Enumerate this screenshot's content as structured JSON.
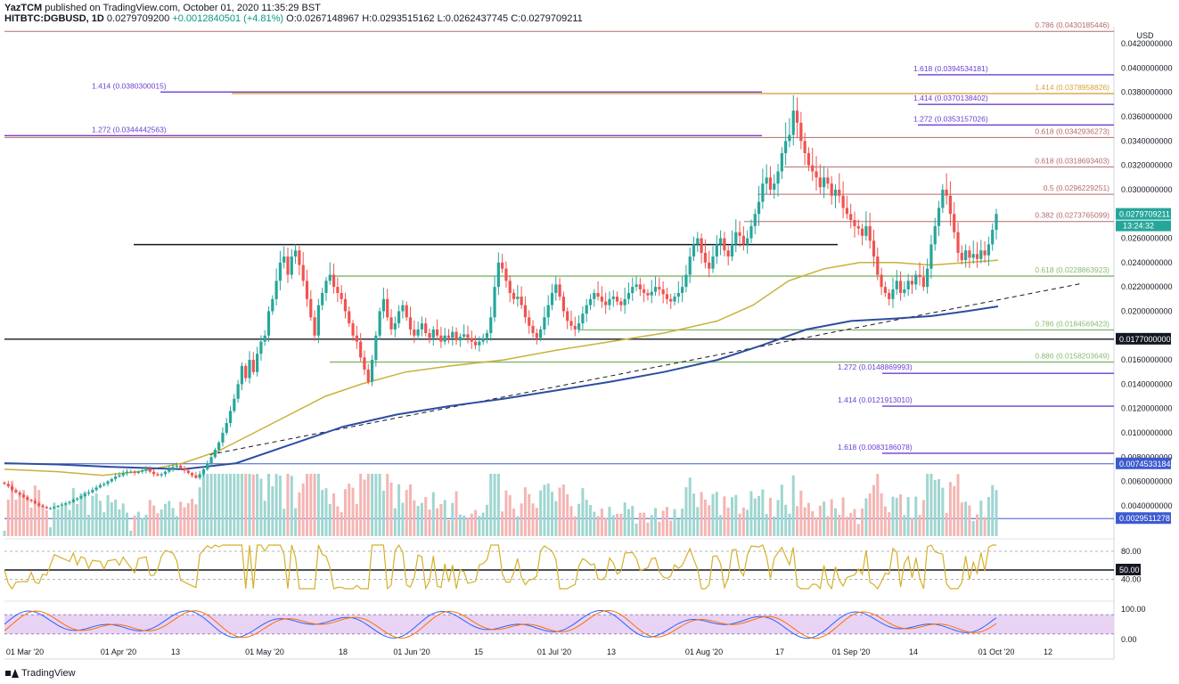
{
  "header": {
    "publisher": "YazTCM",
    "published_text": "published on TradingView.com, October 01, 2020 11:35:29 BST",
    "symbol": "HITBTC:DGBUSD, 1D",
    "price": "0.0279709200",
    "change": "+0.0012840501 (+4.81%)",
    "open": "O:0.0267148967",
    "high": "H:0.0293515162",
    "low": "L:0.0262437745",
    "close": "C:0.0279709211"
  },
  "footer": {
    "brand": "TradingView"
  },
  "colors": {
    "up": "#26a69a",
    "down": "#ef5350",
    "ma_yellow": "#c9b13a",
    "ma_blue": "#2e4da0",
    "fib_red": "#b36a6a",
    "fib_purple": "#6b3fd0",
    "fib_green": "#8bb874",
    "price_tag": "#26a69a"
  },
  "chart_data": [
    {
      "type": "candlestick",
      "currency": "USD",
      "x_tick_labels": [
        "01 Mar '20",
        "01 Apr '20",
        "13",
        "01 May '20",
        "18",
        "01 Jun '20",
        "15",
        "01 Jul '20",
        "13",
        "01 Aug '20",
        "17",
        "01 Sep '20",
        "14",
        "01 Oct '20",
        "12"
      ],
      "y_tick_labels": [
        "0.0420000000",
        "0.0400000000",
        "0.0380000000",
        "0.0360000000",
        "0.0340000000",
        "0.0320000000",
        "0.0300000000",
        "0.0260000000",
        "0.0240000000",
        "0.0220000000",
        "0.0200000000",
        "0.0160000000",
        "0.0140000000",
        "0.0120000000",
        "0.0100000000",
        "0.0080000000",
        "0.0060000000",
        "0.0040000000"
      ],
      "ylim": [
        0.0015,
        0.0434
      ],
      "last_price": "0.0279709211",
      "countdown": "13:24:32",
      "closes": [
        0.0058,
        0.0056,
        0.0053,
        0.0051,
        0.0049,
        0.0047,
        0.0045,
        0.0044,
        0.0042,
        0.004,
        0.0039,
        0.0038,
        0.0038,
        0.0039,
        0.004,
        0.0041,
        0.0042,
        0.0043,
        0.0045,
        0.0046,
        0.0048,
        0.005,
        0.0051,
        0.0053,
        0.0055,
        0.0057,
        0.0058,
        0.006,
        0.0062,
        0.0064,
        0.0065,
        0.0067,
        0.0068,
        0.0068,
        0.0067,
        0.0068,
        0.0069,
        0.007,
        0.0068,
        0.0066,
        0.0065,
        0.0066,
        0.0068,
        0.007,
        0.0072,
        0.0073,
        0.0071,
        0.0069,
        0.0067,
        0.0065,
        0.0063,
        0.0066,
        0.007,
        0.0075,
        0.008,
        0.0086,
        0.0092,
        0.01,
        0.0108,
        0.0118,
        0.0128,
        0.014,
        0.0155,
        0.0145,
        0.016,
        0.015,
        0.0165,
        0.0175,
        0.018,
        0.02,
        0.021,
        0.0225,
        0.024,
        0.0245,
        0.023,
        0.0245,
        0.025,
        0.0238,
        0.0225,
        0.021,
        0.0195,
        0.018,
        0.0205,
        0.0215,
        0.0225,
        0.023,
        0.022,
        0.0215,
        0.021,
        0.02,
        0.019,
        0.018,
        0.0175,
        0.0162,
        0.0152,
        0.0142,
        0.016,
        0.018,
        0.02,
        0.021,
        0.0195,
        0.0185,
        0.019,
        0.02,
        0.0205,
        0.0195,
        0.0185,
        0.018,
        0.0185,
        0.019,
        0.0182,
        0.0178,
        0.0185,
        0.018,
        0.0175,
        0.018,
        0.0178,
        0.0183,
        0.0176,
        0.0179,
        0.0181,
        0.0178,
        0.0175,
        0.0172,
        0.0175,
        0.0178,
        0.0182,
        0.0195,
        0.022,
        0.024,
        0.0235,
        0.0225,
        0.0215,
        0.021,
        0.0212,
        0.0205,
        0.0195,
        0.0188,
        0.0182,
        0.0178,
        0.0185,
        0.0195,
        0.0205,
        0.0215,
        0.0222,
        0.0212,
        0.02,
        0.0192,
        0.0188,
        0.0185,
        0.019,
        0.0198,
        0.0205,
        0.021,
        0.0215,
        0.0212,
        0.0208,
        0.0205,
        0.021,
        0.0212,
        0.0208,
        0.0205,
        0.021,
        0.0215,
        0.022,
        0.0222,
        0.0218,
        0.0215,
        0.0213,
        0.0216,
        0.022,
        0.0218,
        0.0214,
        0.021,
        0.0208,
        0.0212,
        0.0215,
        0.022,
        0.023,
        0.0245,
        0.0255,
        0.026,
        0.0248,
        0.024,
        0.0235,
        0.0245,
        0.0255,
        0.026,
        0.025,
        0.0245,
        0.0255,
        0.0265,
        0.0262,
        0.0255,
        0.026,
        0.027,
        0.028,
        0.029,
        0.0305,
        0.031,
        0.03,
        0.0305,
        0.0315,
        0.033,
        0.034,
        0.0345,
        0.0365,
        0.0355,
        0.034,
        0.033,
        0.032,
        0.0315,
        0.031,
        0.0302,
        0.031,
        0.0305,
        0.0295,
        0.03,
        0.0295,
        0.0285,
        0.028,
        0.0275,
        0.027,
        0.0268,
        0.0262,
        0.027,
        0.0258,
        0.0245,
        0.023,
        0.022,
        0.0215,
        0.021,
        0.0218,
        0.0225,
        0.0215,
        0.0218,
        0.0225,
        0.0222,
        0.023,
        0.0228,
        0.022,
        0.0235,
        0.0255,
        0.027,
        0.0285,
        0.03,
        0.0295,
        0.028,
        0.0265,
        0.0248,
        0.0242,
        0.025,
        0.0244,
        0.0247,
        0.0243,
        0.025,
        0.0246,
        0.0255,
        0.0267,
        0.028
      ],
      "ma_yellow": [
        [
          0,
          0.007
        ],
        [
          60,
          0.0068
        ],
        [
          110,
          0.0065
        ],
        [
          150,
          0.0068
        ],
        [
          200,
          0.0075
        ],
        [
          240,
          0.0085
        ],
        [
          280,
          0.01
        ],
        [
          320,
          0.0115
        ],
        [
          360,
          0.013
        ],
        [
          400,
          0.014
        ],
        [
          450,
          0.015
        ],
        [
          500,
          0.0155
        ],
        [
          560,
          0.016
        ],
        [
          620,
          0.0168
        ],
        [
          680,
          0.0175
        ],
        [
          740,
          0.0182
        ],
        [
          800,
          0.0192
        ],
        [
          840,
          0.0205
        ],
        [
          880,
          0.0225
        ],
        [
          920,
          0.0235
        ],
        [
          960,
          0.024
        ],
        [
          1000,
          0.024
        ],
        [
          1040,
          0.0238
        ],
        [
          1080,
          0.024
        ],
        [
          1115,
          0.0242
        ]
      ],
      "ma_blue": [
        [
          0,
          0.0075
        ],
        [
          60,
          0.0074
        ],
        [
          120,
          0.0072
        ],
        [
          200,
          0.007
        ],
        [
          260,
          0.0075
        ],
        [
          320,
          0.009
        ],
        [
          380,
          0.0105
        ],
        [
          440,
          0.0115
        ],
        [
          500,
          0.0122
        ],
        [
          560,
          0.0128
        ],
        [
          620,
          0.0135
        ],
        [
          680,
          0.0142
        ],
        [
          740,
          0.015
        ],
        [
          800,
          0.016
        ],
        [
          850,
          0.0172
        ],
        [
          900,
          0.0185
        ],
        [
          950,
          0.0192
        ],
        [
          1000,
          0.0194
        ],
        [
          1040,
          0.0196
        ],
        [
          1080,
          0.02
        ],
        [
          1115,
          0.0204
        ]
      ],
      "rsi": {
        "levels": [
          "80.00",
          "50.00",
          "40.00"
        ]
      },
      "stoch": {
        "levels": [
          "100.00",
          "0.00"
        ]
      }
    }
  ],
  "levels": [
    {
      "label": "0.786 (0.0430185446)",
      "value": 0.04302,
      "kind": "red",
      "x1": 5,
      "x2": 1250,
      "label_x": 1245,
      "anchor": "end"
    },
    {
      "label": "1.618 (0.0394534181)",
      "value": 0.03945,
      "kind": "purple",
      "x1": 1030,
      "x2": 1250,
      "label_x": 1025,
      "anchor": "start"
    },
    {
      "label": "1.414 (0.0380300015)",
      "value": 0.03803,
      "kind": "purple",
      "x1": 180,
      "x2": 855,
      "label_x": 103,
      "anchor": "start"
    },
    {
      "label": "1.414 (0.0378958826)",
      "value": 0.0379,
      "kind": "gold",
      "x1": 260,
      "x2": 1250,
      "label_x": 1245,
      "anchor": "end"
    },
    {
      "label": "1.414 (0.0370138402)",
      "value": 0.03701,
      "kind": "purple",
      "x1": 1030,
      "x2": 1250,
      "label_x": 1025,
      "anchor": "start"
    },
    {
      "label": "1.272 (0.0353157026)",
      "value": 0.03532,
      "kind": "purple",
      "x1": 1030,
      "x2": 1250,
      "label_x": 1025,
      "anchor": "start"
    },
    {
      "label": "1.272 (0.0344442563)",
      "value": 0.03444,
      "kind": "purple",
      "x1": 5,
      "x2": 855,
      "label_x": 103,
      "anchor": "start"
    },
    {
      "label": "0.618 (0.0342936273)",
      "value": 0.03429,
      "kind": "red",
      "x1": 5,
      "x2": 1250,
      "label_x": 1245,
      "anchor": "end"
    },
    {
      "label": "0.618 (0.0318693403)",
      "value": 0.03187,
      "kind": "red",
      "x1": 880,
      "x2": 1250,
      "label_x": 1245,
      "anchor": "end"
    },
    {
      "label": "0.5 (0.0296229251)",
      "value": 0.02962,
      "kind": "red",
      "x1": 850,
      "x2": 1250,
      "label_x": 1245,
      "anchor": "end"
    },
    {
      "label": "0.382 (0.0273765099)",
      "value": 0.02738,
      "kind": "red",
      "x1": 835,
      "x2": 1250,
      "label_x": 1245,
      "anchor": "end"
    },
    {
      "label": "0.618 (0.0228863923)",
      "value": 0.02289,
      "kind": "green",
      "x1": 370,
      "x2": 1250,
      "label_x": 1245,
      "anchor": "end"
    },
    {
      "label": "0.786 (0.0184569423)",
      "value": 0.01846,
      "kind": "green",
      "x1": 650,
      "x2": 1250,
      "label_x": 1245,
      "anchor": "end"
    },
    {
      "label": "0.886 (0.0158203649)",
      "value": 0.01582,
      "kind": "green",
      "x1": 370,
      "x2": 1250,
      "label_x": 1245,
      "anchor": "end"
    },
    {
      "label": "1.272 (0.0148869993)",
      "value": 0.01489,
      "kind": "purple",
      "x1": 990,
      "x2": 1250,
      "label_x": 940,
      "anchor": "start"
    },
    {
      "label": "1.414 (0.0121913010)",
      "value": 0.01219,
      "kind": "purple",
      "x1": 990,
      "x2": 1250,
      "label_x": 940,
      "anchor": "start"
    },
    {
      "label": "1.618 (0.0083186078)",
      "value": 0.00832,
      "kind": "purple",
      "x1": 990,
      "x2": 1250,
      "label_x": 940,
      "anchor": "start"
    }
  ],
  "tags": [
    {
      "label": "0.0177000000",
      "value": 0.0177,
      "kind": "black"
    },
    {
      "label": "0.0074533184",
      "value": 0.00745,
      "kind": "blue"
    },
    {
      "label": "0.0029511278",
      "value": 0.00295,
      "kind": "blue"
    }
  ]
}
